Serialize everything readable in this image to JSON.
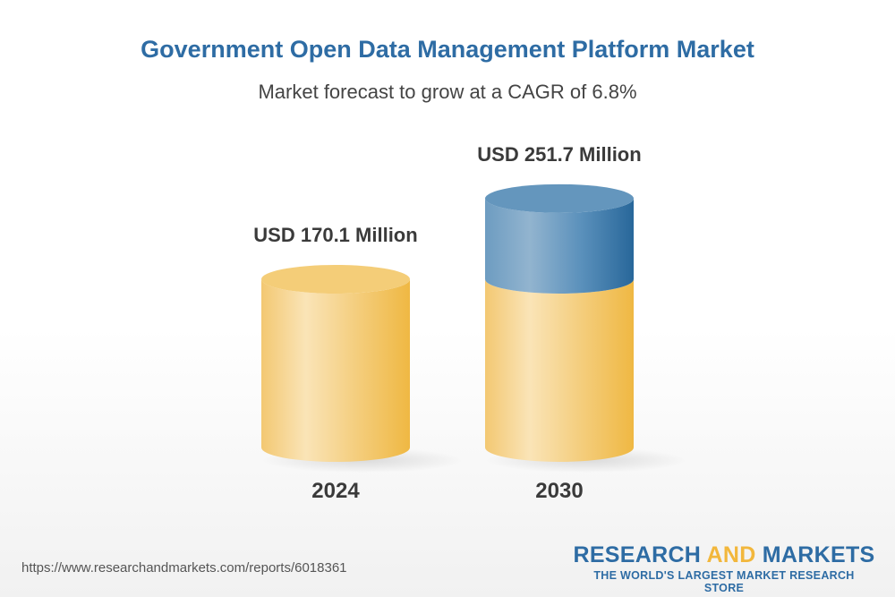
{
  "title": "Government Open Data Management Platform Market",
  "subtitle": "Market forecast to grow at a CAGR of 6.8%",
  "chart_data": {
    "type": "bar",
    "style": "3d-cylinder",
    "categories": [
      "2024",
      "2030"
    ],
    "values": [
      170.1,
      251.7
    ],
    "data_labels": [
      "USD 170.1 Million",
      "USD 251.7 Million"
    ],
    "unit": "USD Million",
    "colors": {
      "base": "#f2c260",
      "growth": "#3f7aab"
    }
  },
  "footer": {
    "url": "https://www.researchandmarkets.com/reports/6018361",
    "logo_part1": "RESEARCH ",
    "logo_part2": "AND",
    "logo_part3": " MARKETS",
    "logo_tagline": "THE WORLD'S LARGEST MARKET RESEARCH STORE"
  }
}
